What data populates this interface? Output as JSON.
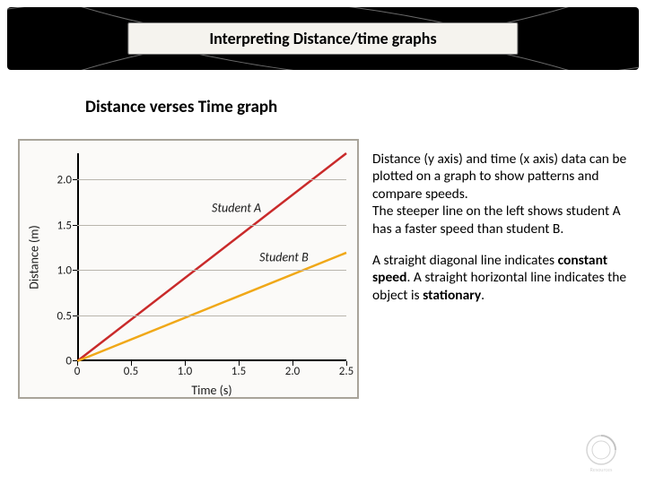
{
  "banner": {
    "title": "Interpreting Distance/time graphs",
    "bg_color": "#000000",
    "title_bg": "#f5f3ee",
    "arc_color": "#6a6a6a"
  },
  "subtitle": "Distance verses Time graph",
  "chart": {
    "type": "line",
    "background": "#fbfaf8",
    "border_color": "#a9a49a",
    "axis_color": "#000000",
    "grid_color": "#b9b5ad",
    "xlabel": "Time (s)",
    "ylabel": "Distance (m)",
    "label_fontsize": 14,
    "tick_fontsize": 13,
    "xlim": [
      0,
      2.5
    ],
    "ylim": [
      0,
      2.3
    ],
    "xticks": [
      0,
      0.5,
      1.0,
      1.5,
      2.0,
      2.5
    ],
    "xtick_labels": [
      "0",
      "0.5",
      "1.0",
      "1.5",
      "2.0",
      "2.5"
    ],
    "yticks": [
      0,
      0.5,
      1.0,
      1.5,
      2.0
    ],
    "ytick_labels": [
      "0",
      "0.5",
      "1.0",
      "1.5",
      "2.0"
    ],
    "ygrid_at": [
      0.5,
      1.0,
      1.5,
      2.0
    ],
    "series": [
      {
        "name": "Student A",
        "label": "Student A",
        "color": "#c92a2a",
        "width": 2.5,
        "x": [
          0,
          2.5
        ],
        "y": [
          0,
          2.3
        ],
        "label_pos": {
          "x": 1.48,
          "y": 1.7
        }
      },
      {
        "name": "Student B",
        "label": "Student B",
        "color": "#f0a818",
        "width": 2.5,
        "x": [
          0,
          2.5
        ],
        "y": [
          0,
          1.2
        ],
        "label_pos": {
          "x": 1.92,
          "y": 1.15
        }
      }
    ]
  },
  "text": {
    "p1": "Distance (y axis) and time (x axis) data can be plotted on a graph to show patterns and compare speeds.",
    "p2": "The steeper line on the left shows student A has a faster speed than student B.",
    "p3_pre": "A straight  diagonal line indicates ",
    "p3_b1": "constant speed",
    "p3_mid": ". A straight horizontal line indicates the object is ",
    "p3_b2": "stationary",
    "p3_post": "."
  }
}
